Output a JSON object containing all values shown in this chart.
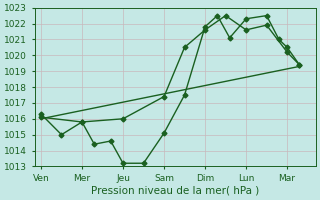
{
  "xlabel": "Pression niveau de la mer( hPa )",
  "ylim": [
    1013,
    1023
  ],
  "xlim": [
    -0.15,
    6.7
  ],
  "yticks": [
    1013,
    1014,
    1015,
    1016,
    1017,
    1018,
    1019,
    1020,
    1021,
    1022,
    1023
  ],
  "xtick_labels": [
    "Ven",
    "Mer",
    "Jeu",
    "Sam",
    "Dim",
    "Lun",
    "Mar"
  ],
  "xtick_positions": [
    0,
    1,
    2,
    3,
    4,
    5,
    6
  ],
  "background_color": "#c5e8e5",
  "grid_color": "#c8b8bc",
  "line_color": "#1a6020",
  "line1_x": [
    0,
    0.5,
    1.0,
    1.3,
    1.7,
    2.0,
    2.5,
    3.0,
    3.5,
    4.0,
    4.3,
    4.6,
    5.0,
    5.5,
    5.8,
    6.0,
    6.3
  ],
  "line1_y": [
    1016.3,
    1015.0,
    1015.8,
    1014.4,
    1014.6,
    1013.2,
    1013.2,
    1015.1,
    1017.5,
    1021.8,
    1022.5,
    1021.1,
    1022.3,
    1022.5,
    1021.0,
    1020.5,
    1019.4
  ],
  "line2_x": [
    0,
    1,
    2,
    3,
    3.5,
    4,
    4.5,
    5,
    5.5,
    6,
    6.3
  ],
  "line2_y": [
    1016.1,
    1015.8,
    1016.0,
    1017.4,
    1020.5,
    1021.6,
    1022.5,
    1021.6,
    1021.9,
    1020.2,
    1019.4
  ],
  "line3_x": [
    0,
    6.3
  ],
  "line3_y": [
    1016.0,
    1019.3
  ],
  "marker": "D",
  "marker_size": 2.5,
  "line_width": 1.0,
  "font_color": "#1a6020",
  "tick_fontsize": 6.5,
  "xlabel_fontsize": 7.5
}
